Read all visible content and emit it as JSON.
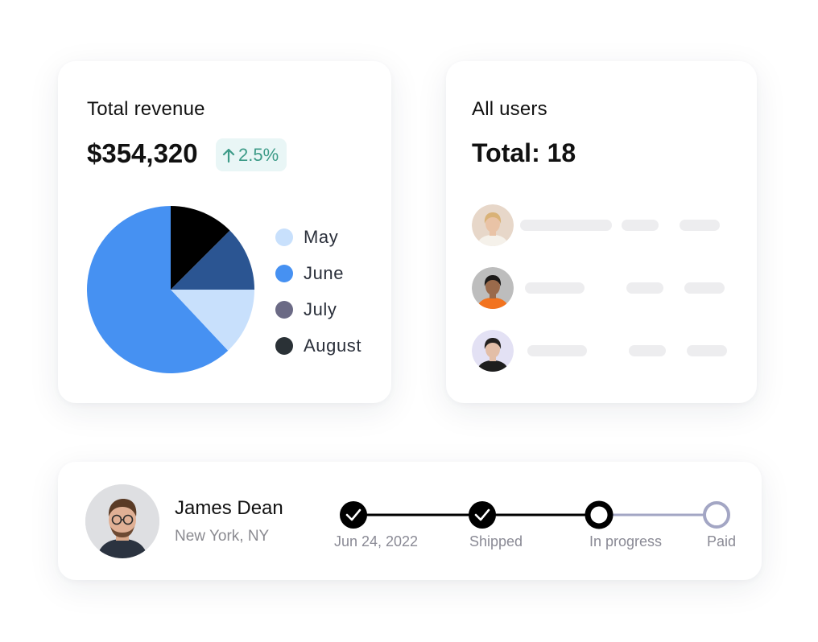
{
  "revenue": {
    "title": "Total revenue",
    "amount": "$354,320",
    "change": "2.5%",
    "change_color": "#3d9b88",
    "chart_data": {
      "type": "pie",
      "slices": [
        {
          "label": "August",
          "value": 12.5,
          "color": "#000000"
        },
        {
          "label": "July",
          "value": 12.5,
          "color": "#2b5592"
        },
        {
          "label": "May",
          "value": 13,
          "color": "#c8e0fc"
        },
        {
          "label": "June",
          "value": 62,
          "color": "#4691f2"
        }
      ]
    },
    "legend": [
      {
        "label": "May",
        "color": "#c8e0fc"
      },
      {
        "label": "June",
        "color": "#4691f2"
      },
      {
        "label": "July",
        "color": "#6b6a85"
      },
      {
        "label": "August",
        "color": "#2a3136"
      }
    ]
  },
  "users": {
    "title": "All users",
    "total": "Total: 18",
    "list": [
      {
        "avatar_bg": "#e7d7c9",
        "skin": "#e9c3a6",
        "hair": "#d9b277",
        "shirt": "#f5f1ea"
      },
      {
        "avatar_bg": "#bdbdbd",
        "skin": "#9a6a4b",
        "hair": "#1c1a19",
        "shirt": "#f2731f"
      },
      {
        "avatar_bg": "#e3e1f4",
        "skin": "#e3bea7",
        "hair": "#24211f",
        "shirt": "#1e1e1e"
      }
    ]
  },
  "order": {
    "name": "James Dean",
    "location": "New York, NY",
    "steps": [
      {
        "label": "Jun 24, 2022",
        "state": "done"
      },
      {
        "label": "Shipped",
        "state": "done"
      },
      {
        "label": "In progress",
        "state": "current"
      },
      {
        "label": "Paid",
        "state": "pending"
      }
    ]
  },
  "icons": {
    "badge_arrow": "arrow-up-icon",
    "step_done": "check-icon"
  }
}
